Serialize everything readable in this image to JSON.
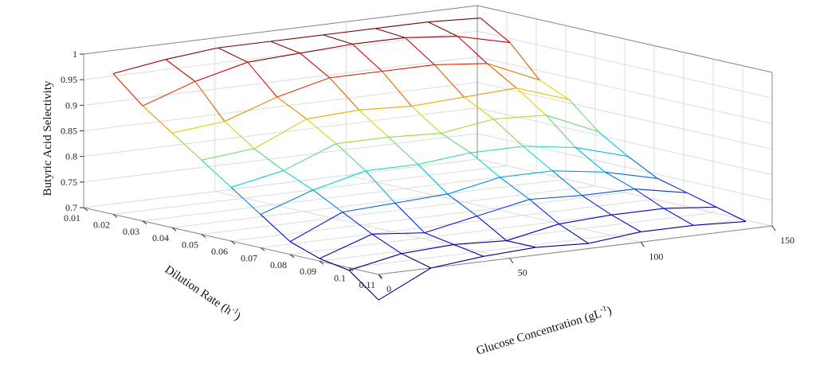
{
  "chart_data": {
    "type": "surface-mesh",
    "title": "",
    "zlabel": "Butyric Acid Selectivity",
    "xlabel": "Dilution Rate (h",
    "xlabel_sup": "-1",
    "xlabel_suffix": ")",
    "ylabel": "Glucose Concentration (gL",
    "ylabel_sup": "-1",
    "ylabel_suffix": ")",
    "dilution_ticks": [
      "0.01",
      "0.02",
      "0.03",
      "0.04",
      "0.05",
      "0.06",
      "0.07",
      "0.08",
      "0.09",
      "0.1",
      "0.11"
    ],
    "glucose_ticks": [
      "0",
      "50",
      "100",
      "150"
    ],
    "selectivity_ticks": [
      "0.7",
      "0.75",
      "0.8",
      "0.85",
      "0.9",
      "0.95",
      "1"
    ],
    "xlim": [
      0.01,
      0.11
    ],
    "ylim": [
      0,
      150
    ],
    "zlim": [
      0.7,
      1
    ],
    "grid": true,
    "colormap": "jet",
    "dilution_rate": [
      0.02,
      0.03,
      0.04,
      0.05,
      0.06,
      0.07,
      0.08,
      0.09,
      0.1,
      0.11
    ],
    "glucose": [
      0,
      20,
      40,
      60,
      80,
      100,
      120,
      140
    ],
    "selectivity": [
      [
        0.975,
        0.99,
        1.0,
        1.0,
        1.0,
        1.0,
        1.0,
        0.995
      ],
      [
        0.925,
        0.96,
        0.985,
        0.99,
        0.995,
        0.995,
        0.985,
        0.96
      ],
      [
        0.885,
        0.895,
        0.93,
        0.955,
        0.955,
        0.955,
        0.945,
        0.9
      ],
      [
        0.845,
        0.855,
        0.9,
        0.905,
        0.9,
        0.905,
        0.91,
        0.875
      ],
      [
        0.805,
        0.825,
        0.865,
        0.865,
        0.86,
        0.875,
        0.87,
        0.825
      ],
      [
        0.765,
        0.8,
        0.825,
        0.825,
        0.835,
        0.835,
        0.82,
        0.79
      ],
      [
        0.725,
        0.77,
        0.775,
        0.78,
        0.8,
        0.8,
        0.785,
        0.76
      ],
      [
        0.705,
        0.74,
        0.73,
        0.75,
        0.77,
        0.765,
        0.765,
        0.745
      ],
      [
        0.695,
        0.715,
        0.72,
        0.715,
        0.735,
        0.74,
        0.74,
        0.73
      ],
      [
        0.65,
        0.7,
        0.71,
        0.715,
        0.71,
        0.72,
        0.72,
        0.715
      ]
    ]
  }
}
